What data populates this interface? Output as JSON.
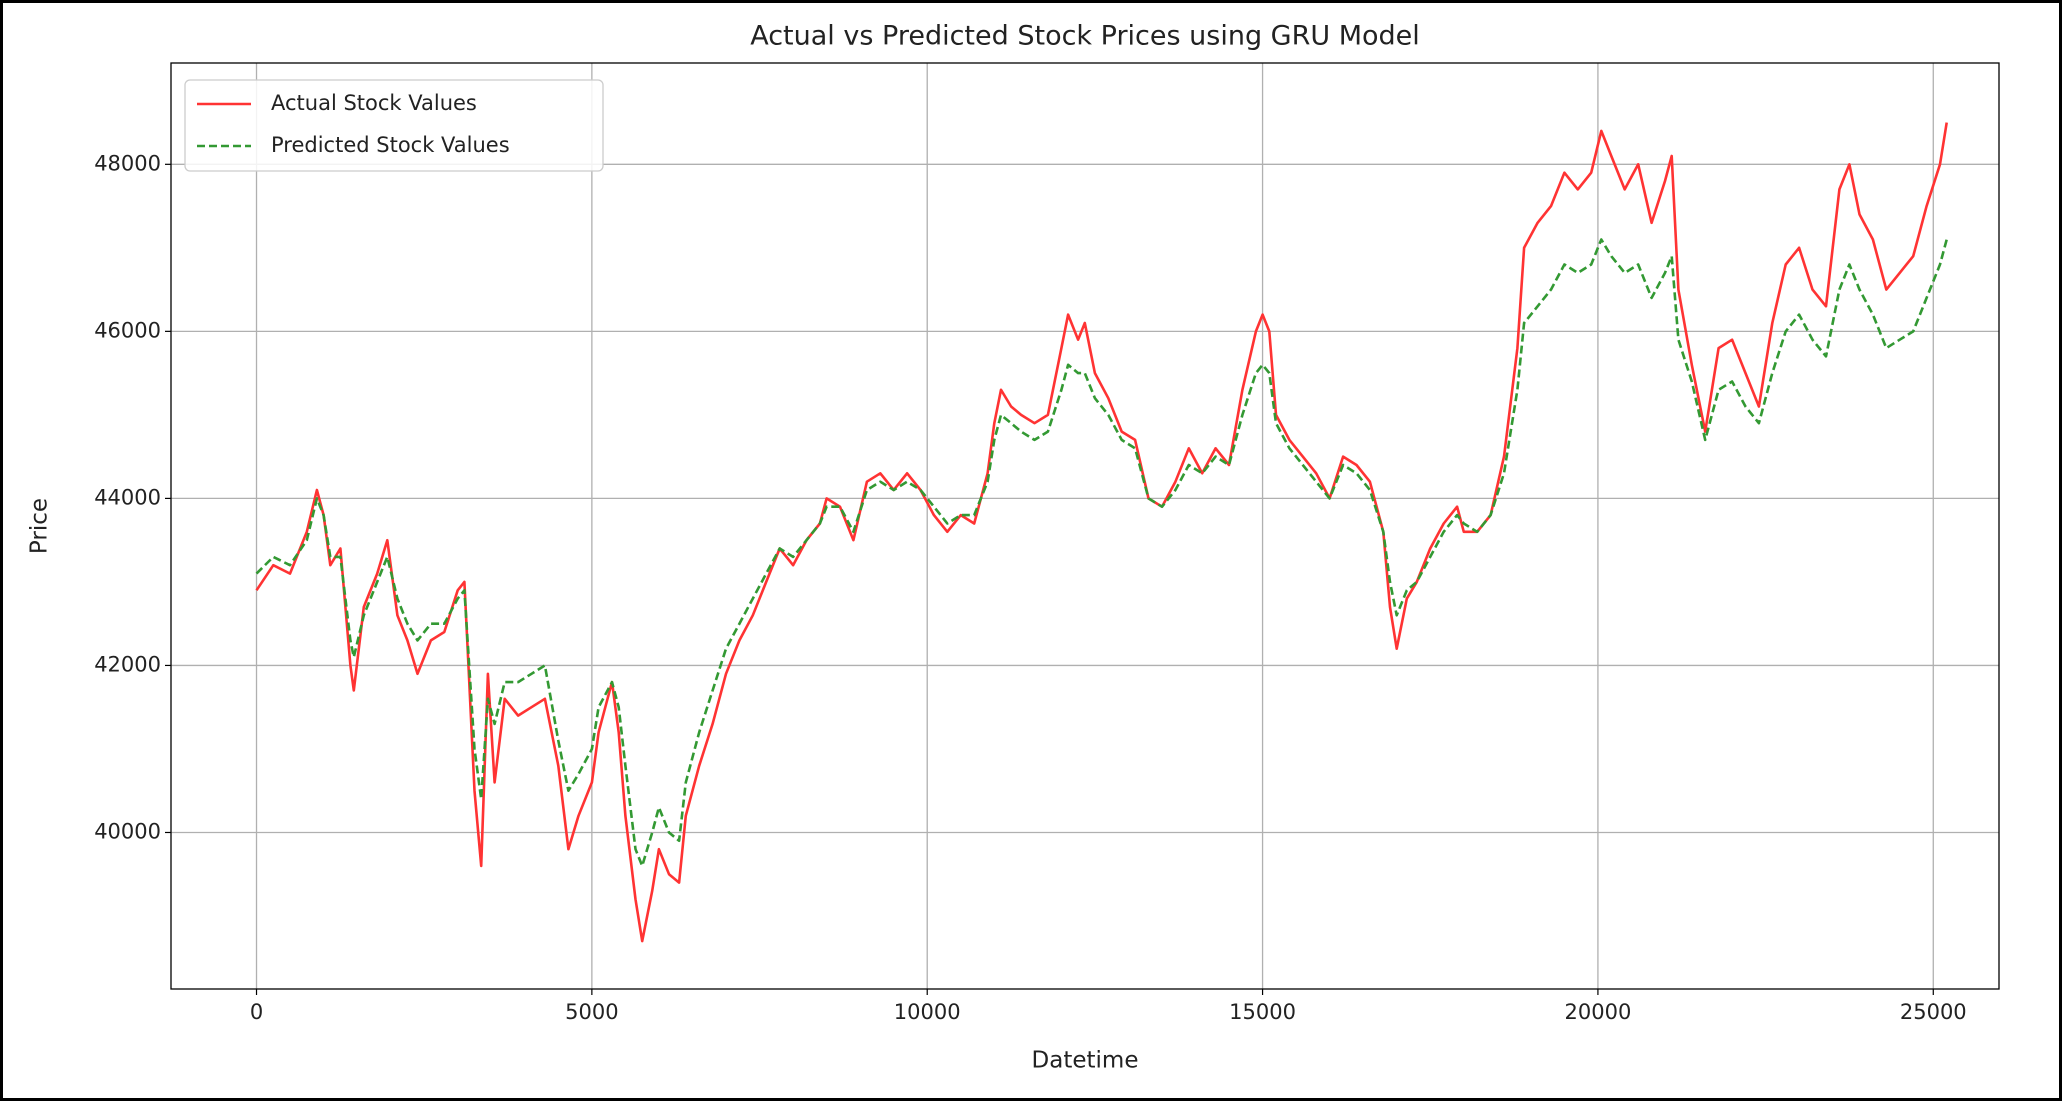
{
  "chart_data": {
    "type": "line",
    "title": "Actual vs Predicted Stock Prices using GRU Model",
    "xlabel": "Datetime",
    "ylabel": "Price",
    "xlim": [
      -1275,
      25980
    ],
    "ylim": [
      38126,
      49213
    ],
    "xticks": [
      0,
      5000,
      10000,
      15000,
      20000,
      25000
    ],
    "yticks": [
      40000,
      42000,
      44000,
      46000,
      48000
    ],
    "grid": true,
    "legend": "upper left",
    "x": [
      0,
      250,
      500,
      750,
      900,
      1000,
      1100,
      1250,
      1400,
      1450,
      1600,
      1800,
      1950,
      2100,
      2250,
      2400,
      2600,
      2800,
      3000,
      3100,
      3250,
      3350,
      3450,
      3550,
      3700,
      3900,
      4100,
      4300,
      4500,
      4650,
      4800,
      5000,
      5100,
      5300,
      5400,
      5500,
      5650,
      5750,
      5900,
      6000,
      6150,
      6300,
      6400,
      6600,
      6800,
      7000,
      7200,
      7400,
      7600,
      7800,
      8000,
      8200,
      8400,
      8500,
      8700,
      8900,
      9100,
      9300,
      9500,
      9700,
      9900,
      10100,
      10300,
      10500,
      10700,
      10900,
      11000,
      11100,
      11250,
      11400,
      11600,
      11800,
      12000,
      12100,
      12250,
      12350,
      12500,
      12700,
      12900,
      13100,
      13300,
      13500,
      13700,
      13900,
      14100,
      14300,
      14500,
      14700,
      14900,
      15000,
      15100,
      15200,
      15400,
      15600,
      15800,
      16000,
      16200,
      16400,
      16600,
      16800,
      16900,
      17000,
      17150,
      17300,
      17500,
      17700,
      17900,
      18000,
      18200,
      18400,
      18600,
      18800,
      18900,
      19100,
      19300,
      19500,
      19700,
      19900,
      20050,
      20200,
      20400,
      20600,
      20800,
      21000,
      21100,
      21200,
      21400,
      21600,
      21800,
      22000,
      22200,
      22400,
      22600,
      22800,
      23000,
      23200,
      23400,
      23600,
      23750,
      23900,
      24100,
      24300,
      24500,
      24700,
      24900,
      25100,
      25200
    ],
    "series": [
      {
        "name": "Actual Stock Values",
        "color": "#ff3333",
        "linestyle": "solid",
        "values": [
          42900,
          43200,
          43100,
          43600,
          44100,
          43800,
          43200,
          43400,
          42000,
          41700,
          42700,
          43100,
          43500,
          42600,
          42300,
          41900,
          42300,
          42400,
          42900,
          43000,
          40500,
          39600,
          41900,
          40600,
          41600,
          41400,
          41500,
          41600,
          40800,
          39800,
          40200,
          40600,
          41200,
          41800,
          41200,
          40200,
          39200,
          38700,
          39300,
          39800,
          39500,
          39400,
          40200,
          40800,
          41300,
          41900,
          42300,
          42600,
          43000,
          43400,
          43200,
          43500,
          43700,
          44000,
          43900,
          43500,
          44200,
          44300,
          44100,
          44300,
          44100,
          43800,
          43600,
          43800,
          43700,
          44300,
          44900,
          45300,
          45100,
          45000,
          44900,
          45000,
          45800,
          46200,
          45900,
          46100,
          45500,
          45200,
          44800,
          44700,
          44000,
          43900,
          44200,
          44600,
          44300,
          44600,
          44400,
          45300,
          46000,
          46200,
          46000,
          45000,
          44700,
          44500,
          44300,
          44000,
          44500,
          44400,
          44200,
          43600,
          42700,
          42200,
          42800,
          43000,
          43400,
          43700,
          43900,
          43600,
          43600,
          43800,
          44500,
          45800,
          47000,
          47300,
          47500,
          47900,
          47700,
          47900,
          48400,
          48100,
          47700,
          48000,
          47300,
          47800,
          48100,
          46500,
          45600,
          44800,
          45800,
          45900,
          45500,
          45100,
          46100,
          46800,
          47000,
          46500,
          46300,
          47700,
          48000,
          47400,
          47100,
          46500,
          46700,
          46900,
          47500,
          48000,
          48500
        ]
      },
      {
        "name": "Predicted Stock Values",
        "color": "#339933",
        "linestyle": "dashed",
        "values": [
          43100,
          43300,
          43200,
          43500,
          44000,
          43800,
          43300,
          43300,
          42300,
          42100,
          42600,
          43000,
          43300,
          42800,
          42500,
          42300,
          42500,
          42500,
          42800,
          42900,
          41000,
          40400,
          41600,
          41300,
          41800,
          41800,
          41900,
          42000,
          41100,
          40500,
          40700,
          41000,
          41500,
          41800,
          41500,
          40800,
          39800,
          39600,
          40000,
          40300,
          40000,
          39900,
          40600,
          41200,
          41700,
          42200,
          42500,
          42800,
          43100,
          43400,
          43300,
          43500,
          43700,
          43900,
          43900,
          43600,
          44100,
          44200,
          44100,
          44200,
          44100,
          43900,
          43700,
          43800,
          43800,
          44200,
          44700,
          45000,
          44900,
          44800,
          44700,
          44800,
          45300,
          45600,
          45500,
          45500,
          45200,
          45000,
          44700,
          44600,
          44000,
          43900,
          44100,
          44400,
          44300,
          44500,
          44400,
          45000,
          45500,
          45600,
          45500,
          44900,
          44600,
          44400,
          44200,
          44000,
          44400,
          44300,
          44100,
          43600,
          43000,
          42600,
          42900,
          43000,
          43300,
          43600,
          43800,
          43700,
          43600,
          43800,
          44300,
          45300,
          46100,
          46300,
          46500,
          46800,
          46700,
          46800,
          47100,
          46900,
          46700,
          46800,
          46400,
          46700,
          46900,
          45900,
          45400,
          44700,
          45300,
          45400,
          45100,
          44900,
          45500,
          46000,
          46200,
          45900,
          45700,
          46500,
          46800,
          46500,
          46200,
          45800,
          45900,
          46000,
          46400,
          46800,
          47100
        ]
      }
    ]
  }
}
